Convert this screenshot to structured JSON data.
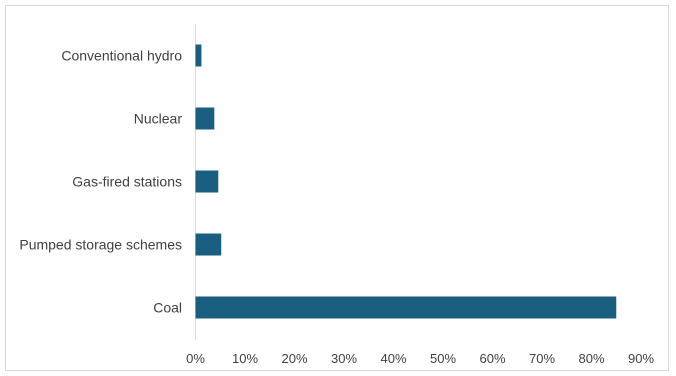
{
  "chart_data": {
    "type": "bar",
    "orientation": "horizontal",
    "title": "",
    "xlabel": "",
    "ylabel": "",
    "categories": [
      "Conventional hydro",
      "Nuclear",
      "Gas-fired stations",
      "Pumped storage schemes",
      "Coal"
    ],
    "values": [
      1.2,
      3.8,
      4.6,
      5.2,
      85.0
    ],
    "xlim": [
      0,
      90
    ],
    "x_ticks": [
      0,
      10,
      20,
      30,
      40,
      50,
      60,
      70,
      80,
      90
    ],
    "tick_format": "{v}%",
    "grid": false,
    "legend": "none",
    "bar_color": "#1a5e80"
  }
}
